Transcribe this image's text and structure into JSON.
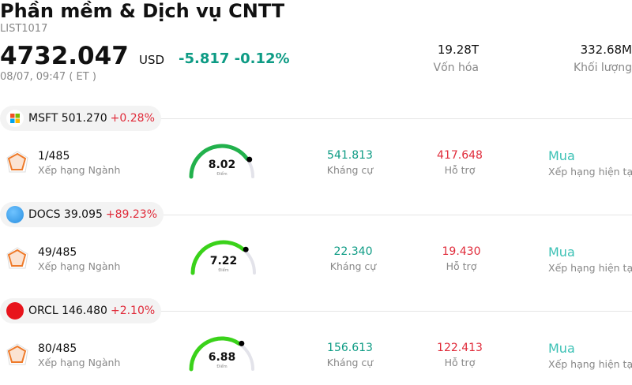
{
  "header": {
    "title": "Phần mềm & Dịch vụ CNTT",
    "code": "LIST1017",
    "price": "4732.047",
    "currency": "USD",
    "change": "-5.817 -0.12%",
    "timestamp": "08/07, 09:47  ( ET )",
    "market_cap_value": "19.28T",
    "market_cap_label": "Vốn hóa",
    "volume_value": "332.68M",
    "volume_label": "Khối lượng"
  },
  "stocks": [
    {
      "ticker": "MSFT 501.270",
      "change": "+0.28%",
      "rank": "1/485",
      "rank_label": "Xếp hạng Ngành",
      "score": "8.02",
      "score_label": "Điểm",
      "score_value": 8.02,
      "resistance": "541.813",
      "resistance_label": "Kháng cự",
      "support": "417.648",
      "support_label": "Hỗ trợ",
      "rating": "Mua",
      "rating_label": "Xếp hạng hiện tại",
      "logo": "microsoft-logo",
      "gauge_color": "#22b14c"
    },
    {
      "ticker": "DOCS 39.095",
      "change": "+89.23%",
      "rank": "49/485",
      "rank_label": "Xếp hạng Ngành",
      "score": "7.22",
      "score_label": "Điểm",
      "score_value": 7.22,
      "resistance": "22.340",
      "resistance_label": "Kháng cự",
      "support": "19.430",
      "support_label": "Hỗ trợ",
      "rating": "Mua",
      "rating_label": "Xếp hạng hiện tại",
      "logo": "doximity-logo",
      "gauge_color": "#3ad21a"
    },
    {
      "ticker": "ORCL 146.480",
      "change": "+2.10%",
      "rank": "80/485",
      "rank_label": "Xếp hạng Ngành",
      "score": "6.88",
      "score_label": "Điểm",
      "score_value": 6.88,
      "resistance": "156.613",
      "resistance_label": "Kháng cự",
      "support": "122.413",
      "support_label": "Hỗ trợ",
      "rating": "Mua",
      "rating_label": "Xếp hạng hiện tại",
      "logo": "oracle-logo",
      "gauge_color": "#3ad21a"
    }
  ]
}
